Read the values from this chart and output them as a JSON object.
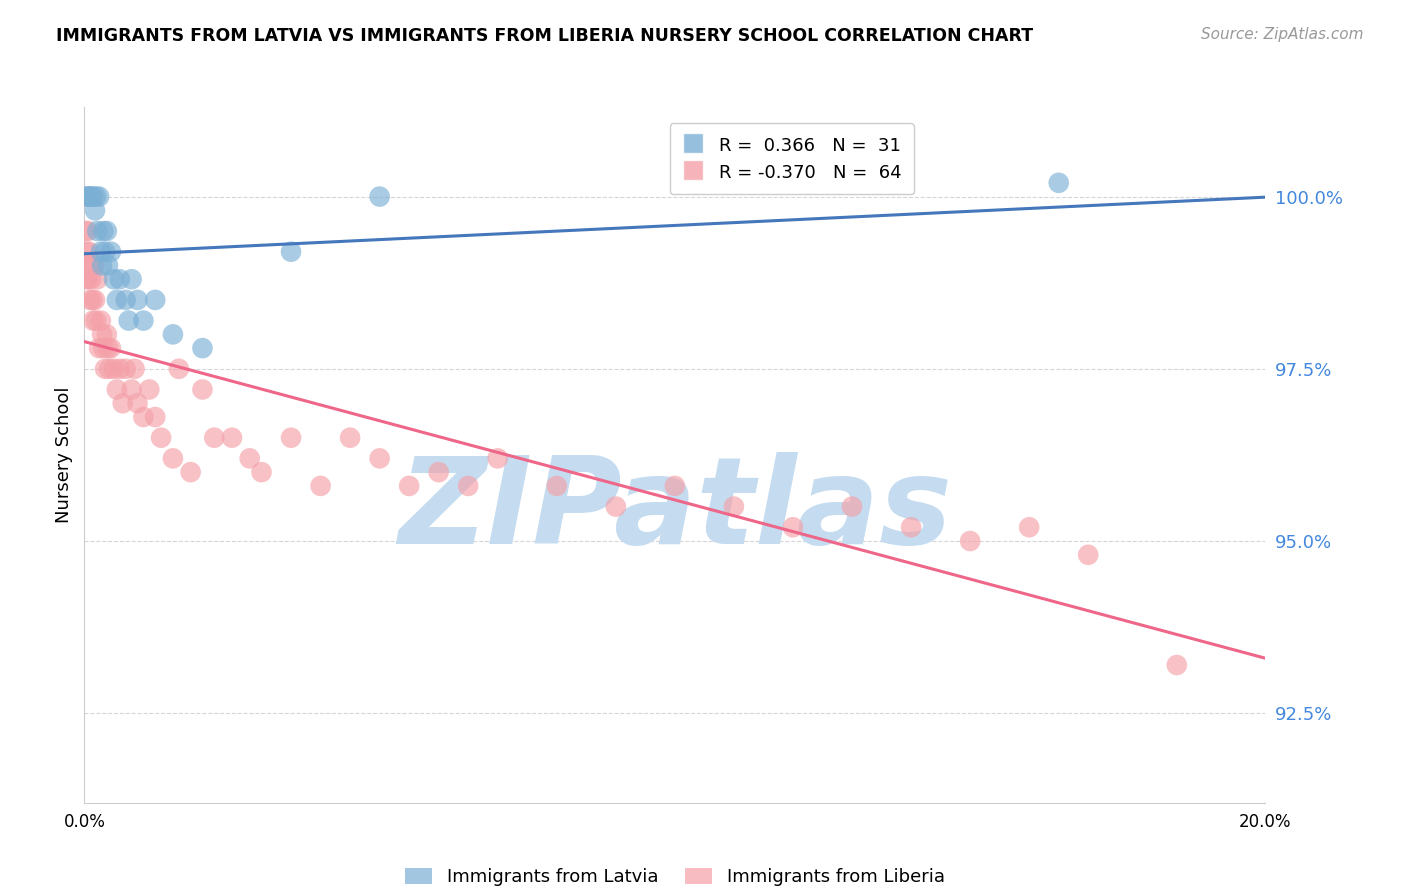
{
  "title": "IMMIGRANTS FROM LATVIA VS IMMIGRANTS FROM LIBERIA NURSERY SCHOOL CORRELATION CHART",
  "source": "Source: ZipAtlas.com",
  "ylabel": "Nursery School",
  "yticks": [
    92.5,
    95.0,
    97.5,
    100.0
  ],
  "ytick_labels": [
    "92.5%",
    "95.0%",
    "97.5%",
    "100.0%"
  ],
  "xlim": [
    0.0,
    20.0
  ],
  "ylim": [
    91.2,
    101.3
  ],
  "blue_color": "#7BAFD4",
  "pink_color": "#F4A0A8",
  "blue_line_color": "#4477BB",
  "pink_line_color": "#EE6688",
  "watermark": "ZIPatlas",
  "watermark_color": "#C5DCF0",
  "legend_r1": "R =  0.366",
  "legend_n1": "N =  31",
  "legend_r2": "R = -0.370",
  "legend_n2": "N =  64",
  "latvia_x": [
    0.05,
    0.05,
    0.08,
    0.1,
    0.12,
    0.15,
    0.18,
    0.2,
    0.22,
    0.25,
    0.28,
    0.3,
    0.32,
    0.35,
    0.38,
    0.4,
    0.45,
    0.5,
    0.55,
    0.6,
    0.7,
    0.75,
    0.8,
    0.9,
    1.0,
    1.2,
    1.5,
    2.0,
    3.5,
    5.0,
    16.5
  ],
  "latvia_y": [
    100.0,
    100.0,
    100.0,
    100.0,
    100.0,
    100.0,
    99.8,
    100.0,
    99.5,
    100.0,
    99.2,
    99.0,
    99.5,
    99.2,
    99.5,
    99.0,
    99.2,
    98.8,
    98.5,
    98.8,
    98.5,
    98.2,
    98.8,
    98.5,
    98.2,
    98.5,
    98.0,
    97.8,
    99.2,
    100.0,
    100.2
  ],
  "liberia_x": [
    0.02,
    0.03,
    0.04,
    0.05,
    0.06,
    0.07,
    0.08,
    0.09,
    0.1,
    0.12,
    0.14,
    0.15,
    0.16,
    0.18,
    0.2,
    0.22,
    0.25,
    0.28,
    0.3,
    0.32,
    0.35,
    0.38,
    0.4,
    0.42,
    0.45,
    0.5,
    0.55,
    0.6,
    0.65,
    0.7,
    0.8,
    0.85,
    0.9,
    1.0,
    1.1,
    1.2,
    1.3,
    1.5,
    1.6,
    1.8,
    2.0,
    2.2,
    2.5,
    2.8,
    3.0,
    3.5,
    4.0,
    4.5,
    5.0,
    5.5,
    6.0,
    6.5,
    7.0,
    8.0,
    9.0,
    10.0,
    11.0,
    12.0,
    13.0,
    14.0,
    15.0,
    16.0,
    17.0,
    18.5
  ],
  "liberia_y": [
    99.5,
    99.2,
    98.8,
    99.0,
    99.5,
    98.8,
    99.2,
    99.0,
    98.5,
    98.8,
    98.5,
    98.2,
    99.0,
    98.5,
    98.2,
    98.8,
    97.8,
    98.2,
    98.0,
    97.8,
    97.5,
    98.0,
    97.8,
    97.5,
    97.8,
    97.5,
    97.2,
    97.5,
    97.0,
    97.5,
    97.2,
    97.5,
    97.0,
    96.8,
    97.2,
    96.8,
    96.5,
    96.2,
    97.5,
    96.0,
    97.2,
    96.5,
    96.5,
    96.2,
    96.0,
    96.5,
    95.8,
    96.5,
    96.2,
    95.8,
    96.0,
    95.8,
    96.2,
    95.8,
    95.5,
    95.8,
    95.5,
    95.2,
    95.5,
    95.2,
    95.0,
    95.2,
    94.8,
    93.2
  ]
}
